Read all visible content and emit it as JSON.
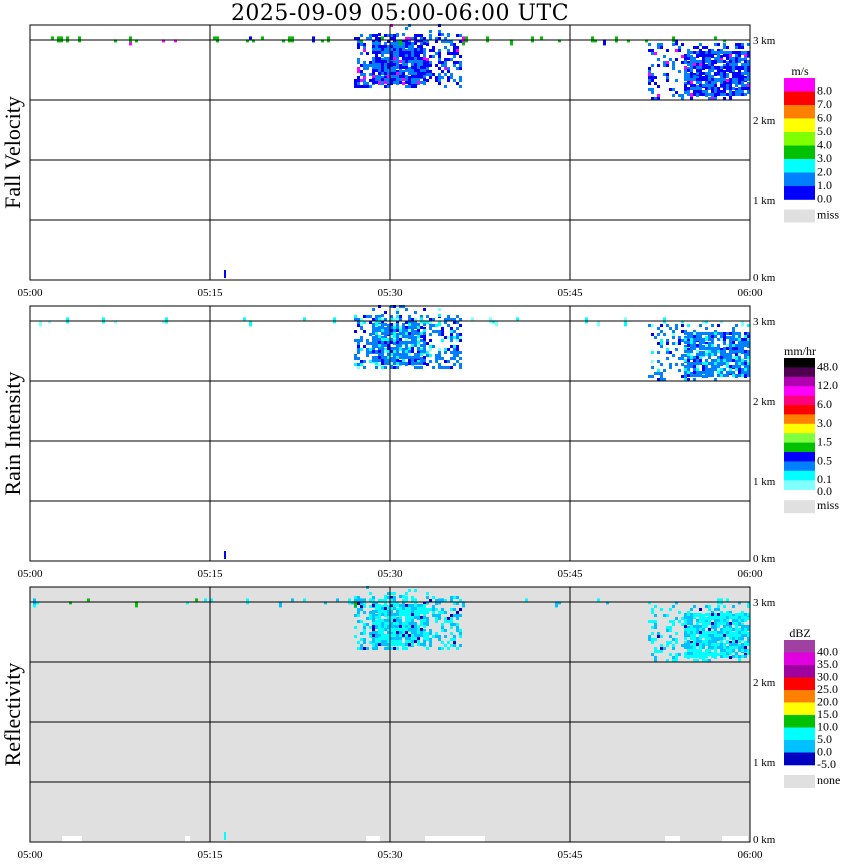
{
  "title": "2025-09-09   05:00-06:00 UTC",
  "time_axis": {
    "ticks": [
      "05:00",
      "05:15",
      "05:30",
      "05:45",
      "06:00"
    ],
    "tick_minutes": [
      0,
      15,
      30,
      45,
      60
    ]
  },
  "height_axis": {
    "ticks": [
      "3 km",
      "2 km",
      "1 km",
      "0 km"
    ],
    "tick_km": [
      3,
      2,
      1,
      0
    ],
    "grid_heights_km": [
      3,
      2.25,
      1.5,
      0.75
    ],
    "top_km": 3.1875
  },
  "chart_data": [
    {
      "type": "heatmap",
      "title": "Fall Velocity",
      "unit": "m/s",
      "background": "#ffffff",
      "legend_colors": [
        "#ff00ff",
        "#ff0000",
        "#ff8000",
        "#ffff00",
        "#80ff00",
        "#00c000",
        "#00ffff",
        "#0080ff",
        "#0000ff"
      ],
      "legend_labels": [
        "8.0",
        "7.0",
        "6.0",
        "5.0",
        "4.0",
        "3.0",
        "2.0",
        "1.0",
        "0.0"
      ],
      "missing_label": "miss",
      "core_palette": [
        [
          "#0000ff",
          0.45
        ],
        [
          "#0080ff",
          0.5
        ],
        [
          "#ff00ff",
          0.05
        ]
      ],
      "trace_palette": [
        [
          "#00c000",
          0.7
        ],
        [
          "#0000ff",
          0.2
        ],
        [
          "#ff00ff",
          0.1
        ]
      ]
    },
    {
      "type": "heatmap",
      "title": "Rain Intensity",
      "unit": "mm/hr",
      "background": "#ffffff",
      "legend_colors": [
        "#000000",
        "#500050",
        "#b000b0",
        "#ff00ff",
        "#ff0080",
        "#ff0000",
        "#ff8000",
        "#ffff00",
        "#80ff40",
        "#00c000",
        "#0000ff",
        "#0080ff",
        "#00ffff",
        "#80ffff"
      ],
      "legend_labels": [
        "48.0",
        "12.0",
        "6.0",
        "3.0",
        "1.5",
        "0.5",
        "0.1",
        "0.0"
      ],
      "legend_label_boxes": [
        0,
        2,
        4,
        6,
        8,
        10,
        12,
        13
      ],
      "missing_label": "miss",
      "core_palette": [
        [
          "#0080ff",
          0.6
        ],
        [
          "#0000ff",
          0.18
        ],
        [
          "#00ffff",
          0.15
        ],
        [
          "#80ffff",
          0.07
        ]
      ],
      "trace_palette": [
        [
          "#00ffff",
          0.6
        ],
        [
          "#80ffff",
          0.4
        ]
      ]
    },
    {
      "type": "heatmap",
      "title": "Reflectivity",
      "unit": "dBZ",
      "background": "#e0e0e0",
      "legend_colors": [
        "#a040a0",
        "#e000e0",
        "#a000a0",
        "#ff0000",
        "#ff8000",
        "#ffff00",
        "#00c000",
        "#00ffff",
        "#00c0ff",
        "#0000c0"
      ],
      "legend_labels": [
        "40.0",
        "35.0",
        "30.0",
        "25.0",
        "20.0",
        "15.0",
        "10.0",
        "5.0",
        "0.0",
        "-5.0"
      ],
      "missing_label": "none",
      "core_palette": [
        [
          "#00ffff",
          0.55
        ],
        [
          "#00c0ff",
          0.4
        ],
        [
          "#0000c0",
          0.05
        ]
      ],
      "trace_palette": [
        [
          "#00ffff",
          0.6
        ],
        [
          "#00c0ff",
          0.3
        ],
        [
          "#00c000",
          0.1
        ]
      ]
    }
  ],
  "echo_regions": [
    {
      "t": [
        27,
        36
      ],
      "h": [
        2.4,
        3.05
      ],
      "density": 0.45
    },
    {
      "t": [
        28.5,
        33
      ],
      "h": [
        2.45,
        2.95
      ],
      "density": 0.85
    },
    {
      "t": [
        27.5,
        35
      ],
      "h": [
        3.05,
        3.19
      ],
      "density": 0.12
    },
    {
      "t": [
        51.5,
        60
      ],
      "h": [
        2.25,
        2.95
      ],
      "density": 0.3
    },
    {
      "t": [
        54.5,
        60
      ],
      "h": [
        2.3,
        2.85
      ],
      "density": 0.8
    },
    {
      "t": [
        0,
        60
      ],
      "h": [
        2.97,
        3.02
      ],
      "density": 0.1,
      "trace": true
    }
  ]
}
